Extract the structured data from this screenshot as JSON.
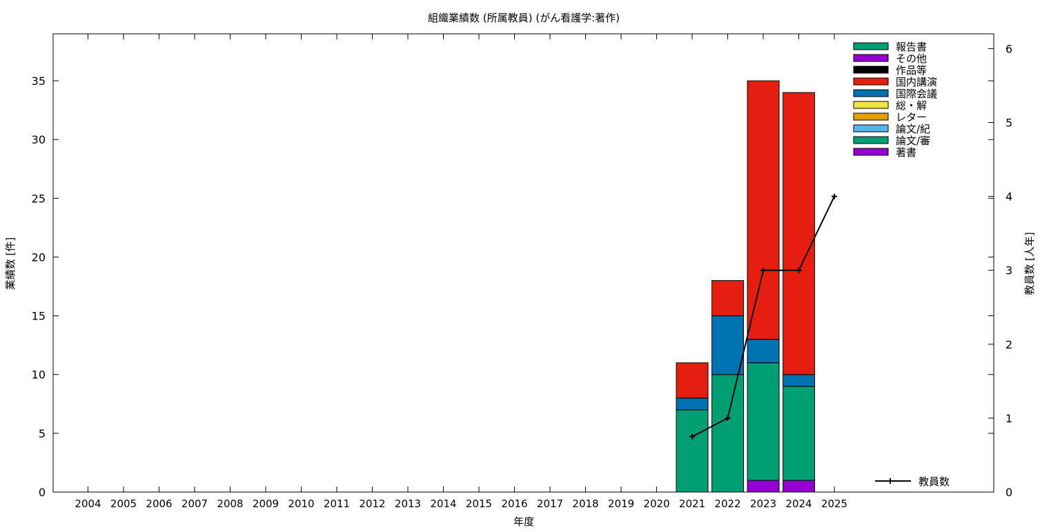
{
  "chart_data": {
    "type": "bar",
    "title": "組織業績数 (所属教員) (がん看護学:著作)",
    "xlabel": "年度",
    "ylabel": "業績数 [件]",
    "y2label": "教員数 [人年]",
    "ylim": [
      0,
      39
    ],
    "y2lim": [
      0,
      6.2
    ],
    "yticks": [
      0,
      5,
      10,
      15,
      20,
      25,
      30,
      35
    ],
    "y2ticks": [
      0,
      1,
      2,
      3,
      4,
      5,
      6
    ],
    "grid": false,
    "legend_position": "top-right",
    "categories": [
      "2004",
      "2005",
      "2006",
      "2007",
      "2008",
      "2009",
      "2010",
      "2011",
      "2012",
      "2013",
      "2014",
      "2015",
      "2016",
      "2017",
      "2018",
      "2019",
      "2020",
      "2021",
      "2022",
      "2023",
      "2024",
      "2025"
    ],
    "series": [
      {
        "name": "報告書",
        "color": "#009e73",
        "values": [
          0,
          0,
          0,
          0,
          0,
          0,
          0,
          0,
          0,
          0,
          0,
          0,
          0,
          0,
          0,
          0,
          0,
          0,
          0,
          0,
          0,
          0
        ]
      },
      {
        "name": "その他",
        "color": "#9400d3",
        "values": [
          0,
          0,
          0,
          0,
          0,
          0,
          0,
          0,
          0,
          0,
          0,
          0,
          0,
          0,
          0,
          0,
          0,
          0,
          0,
          0,
          0,
          0
        ]
      },
      {
        "name": "作品等",
        "color": "#000000",
        "values": [
          0,
          0,
          0,
          0,
          0,
          0,
          0,
          0,
          0,
          0,
          0,
          0,
          0,
          0,
          0,
          0,
          0,
          0,
          0,
          0,
          0,
          0
        ]
      },
      {
        "name": "国内講演",
        "color": "#e51e10",
        "values": [
          0,
          0,
          0,
          0,
          0,
          0,
          0,
          0,
          0,
          0,
          0,
          0,
          0,
          0,
          0,
          0,
          0,
          3,
          3,
          22,
          24,
          0
        ]
      },
      {
        "name": "国際会議",
        "color": "#0072b2",
        "values": [
          0,
          0,
          0,
          0,
          0,
          0,
          0,
          0,
          0,
          0,
          0,
          0,
          0,
          0,
          0,
          0,
          0,
          1,
          5,
          2,
          1,
          0
        ]
      },
      {
        "name": "総・解",
        "color": "#f0e442",
        "values": [
          0,
          0,
          0,
          0,
          0,
          0,
          0,
          0,
          0,
          0,
          0,
          0,
          0,
          0,
          0,
          0,
          0,
          0,
          0,
          0,
          0,
          0
        ]
      },
      {
        "name": "レター",
        "color": "#e69f00",
        "values": [
          0,
          0,
          0,
          0,
          0,
          0,
          0,
          0,
          0,
          0,
          0,
          0,
          0,
          0,
          0,
          0,
          0,
          0,
          0,
          0,
          0,
          0
        ]
      },
      {
        "name": "論文/紀",
        "color": "#56b4e9",
        "values": [
          0,
          0,
          0,
          0,
          0,
          0,
          0,
          0,
          0,
          0,
          0,
          0,
          0,
          0,
          0,
          0,
          0,
          0,
          0,
          0,
          0,
          0
        ]
      },
      {
        "name": "論文/審",
        "color": "#009e73",
        "values": [
          0,
          0,
          0,
          0,
          0,
          0,
          0,
          0,
          0,
          0,
          0,
          0,
          0,
          0,
          0,
          0,
          0,
          7,
          10,
          10,
          8,
          0
        ]
      },
      {
        "name": "著書",
        "color": "#9400d3",
        "values": [
          0,
          0,
          0,
          0,
          0,
          0,
          0,
          0,
          0,
          0,
          0,
          0,
          0,
          0,
          0,
          0,
          0,
          0,
          0,
          1,
          1,
          0
        ]
      }
    ],
    "stack_order": [
      "著書",
      "論文/審",
      "論文/紀",
      "レター",
      "総・解",
      "国際会議",
      "国内講演",
      "作品等",
      "その他",
      "報告書"
    ],
    "line_series": {
      "name": "教員数",
      "color": "#000000",
      "axis": "y2",
      "points": [
        {
          "x": "2021",
          "y": 0.75
        },
        {
          "x": "2022",
          "y": 1.0
        },
        {
          "x": "2023",
          "y": 3.0
        },
        {
          "x": "2024",
          "y": 3.0
        },
        {
          "x": "2025",
          "y": 4.0
        }
      ]
    }
  }
}
